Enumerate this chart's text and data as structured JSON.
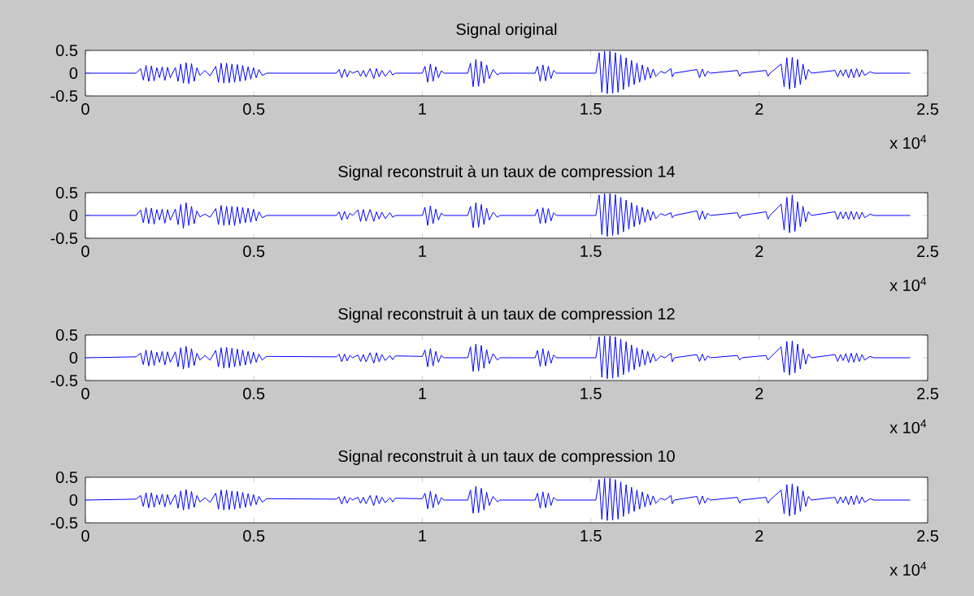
{
  "chart_data": [
    {
      "type": "line",
      "title": "Signal original",
      "color": "#0000ff",
      "xlim": [
        0,
        2.5
      ],
      "ylim": [
        -0.5,
        0.5
      ],
      "xticks": [
        0,
        0.5,
        1,
        1.5,
        2,
        2.5
      ],
      "yticks": [
        -0.5,
        0,
        0.5
      ],
      "annotations": [
        "x 10$^{4}$"
      ],
      "x": [
        0,
        0.15,
        0.164,
        0.172,
        0.18,
        0.188,
        0.196,
        0.204,
        0.212,
        0.22,
        0.228,
        0.236,
        0.244,
        0.252,
        0.267,
        0.275,
        0.283,
        0.291,
        0.299,
        0.307,
        0.315,
        0.323,
        0.331,
        0.34,
        0.355,
        0.37,
        0.387,
        0.395,
        0.403,
        0.411,
        0.419,
        0.427,
        0.435,
        0.443,
        0.451,
        0.459,
        0.467,
        0.475,
        0.483,
        0.491,
        0.499,
        0.507,
        0.515,
        0.525,
        0.538,
        0.745,
        0.753,
        0.761,
        0.769,
        0.777,
        0.785,
        0.793,
        0.809,
        0.817,
        0.825,
        0.833,
        0.845,
        0.856,
        0.864,
        0.872,
        0.88,
        0.89,
        0.904,
        0.912,
        0.92,
        1.0,
        1.008,
        1.016,
        1.024,
        1.032,
        1.04,
        1.048,
        1.056,
        1.065,
        1.135,
        1.143,
        1.151,
        1.159,
        1.167,
        1.175,
        1.183,
        1.191,
        1.199,
        1.21,
        1.223,
        1.23,
        1.335,
        1.342,
        1.35,
        1.358,
        1.366,
        1.374,
        1.382,
        1.39,
        1.398,
        1.515,
        1.525,
        1.533,
        1.541,
        1.549,
        1.557,
        1.565,
        1.573,
        1.581,
        1.589,
        1.597,
        1.605,
        1.613,
        1.621,
        1.629,
        1.637,
        1.645,
        1.653,
        1.661,
        1.669,
        1.677,
        1.685,
        1.693,
        1.708,
        1.72,
        1.738,
        1.742,
        1.748,
        1.815,
        1.823,
        1.831,
        1.839,
        1.847,
        1.855,
        1.935,
        1.942,
        1.948,
        2.02,
        2.026,
        2.032,
        2.065,
        2.074,
        2.082,
        2.09,
        2.098,
        2.106,
        2.114,
        2.122,
        2.13,
        2.138,
        2.146,
        2.155,
        2.225,
        2.233,
        2.241,
        2.249,
        2.257,
        2.265,
        2.273,
        2.281,
        2.289,
        2.297,
        2.305,
        2.313,
        2.329,
        2.34,
        2.448
      ],
      "values": [
        0,
        0,
        0.1,
        -0.15,
        0.17,
        -0.18,
        0.16,
        -0.17,
        0.12,
        -0.1,
        0.14,
        -0.16,
        0.13,
        -0.1,
        0.12,
        -0.18,
        0.2,
        -0.22,
        0.23,
        -0.23,
        0.21,
        -0.18,
        0.12,
        -0.05,
        0.06,
        -0.06,
        0.15,
        -0.2,
        0.22,
        -0.22,
        0.22,
        -0.21,
        0.2,
        -0.2,
        0.19,
        -0.18,
        0.17,
        -0.16,
        0.14,
        -0.13,
        0.12,
        -0.1,
        0.08,
        -0.05,
        0,
        0,
        0.08,
        -0.1,
        0.09,
        -0.08,
        0.05,
        0,
        0.05,
        -0.07,
        0.06,
        -0.08,
        0.1,
        -0.12,
        0.1,
        -0.08,
        0.06,
        -0.07,
        0.06,
        -0.04,
        0,
        0,
        0.15,
        -0.2,
        0.2,
        -0.18,
        0.14,
        -0.1,
        0.05,
        0,
        0,
        0.22,
        -0.3,
        0.3,
        -0.29,
        0.26,
        -0.22,
        0.18,
        -0.12,
        0.08,
        -0.04,
        0,
        0,
        0.15,
        -0.18,
        0.18,
        -0.17,
        0.15,
        -0.12,
        0.06,
        0,
        0,
        0.45,
        -0.42,
        0.48,
        -0.45,
        0.48,
        -0.44,
        0.45,
        -0.42,
        0.4,
        -0.36,
        0.34,
        -0.3,
        0.28,
        -0.25,
        0.22,
        -0.2,
        0.18,
        -0.15,
        0.13,
        -0.11,
        0.09,
        -0.07,
        0.04,
        0,
        0.1,
        -0.08,
        0,
        0.08,
        -0.1,
        0.09,
        -0.07,
        0.04,
        0,
        0.06,
        -0.07,
        0,
        0.06,
        -0.07,
        0,
        0.2,
        -0.3,
        0.34,
        -0.35,
        0.35,
        -0.32,
        0.3,
        -0.25,
        0.2,
        -0.14,
        0.08,
        0,
        0.06,
        -0.08,
        0.07,
        -0.06,
        0.08,
        -0.1,
        0.09,
        -0.1,
        0.1,
        -0.08,
        0.07,
        -0.05,
        0.03,
        0,
        0
      ]
    },
    {
      "type": "line",
      "title": "Signal reconstruit à un taux de compression 14",
      "color": "#0000ff",
      "xlim": [
        0,
        2.5
      ],
      "ylim": [
        -0.5,
        0.5
      ],
      "xticks": [
        0,
        0.5,
        1,
        1.5,
        2,
        2.5
      ],
      "yticks": [
        -0.5,
        0,
        0.5
      ],
      "annotations": [
        "x 10$^{4}$"
      ],
      "x": [
        0,
        0.15,
        0.164,
        0.172,
        0.18,
        0.188,
        0.196,
        0.204,
        0.212,
        0.22,
        0.228,
        0.236,
        0.244,
        0.252,
        0.267,
        0.275,
        0.283,
        0.291,
        0.299,
        0.307,
        0.315,
        0.323,
        0.331,
        0.34,
        0.355,
        0.37,
        0.387,
        0.395,
        0.403,
        0.411,
        0.419,
        0.427,
        0.435,
        0.443,
        0.451,
        0.459,
        0.467,
        0.475,
        0.483,
        0.491,
        0.499,
        0.507,
        0.515,
        0.525,
        0.538,
        0.745,
        0.753,
        0.761,
        0.769,
        0.777,
        0.785,
        0.793,
        0.809,
        0.817,
        0.825,
        0.833,
        0.845,
        0.856,
        0.864,
        0.872,
        0.88,
        0.89,
        0.904,
        0.912,
        0.92,
        1.0,
        1.008,
        1.016,
        1.024,
        1.032,
        1.04,
        1.048,
        1.056,
        1.065,
        1.135,
        1.143,
        1.151,
        1.159,
        1.167,
        1.175,
        1.183,
        1.191,
        1.199,
        1.21,
        1.223,
        1.23,
        1.335,
        1.342,
        1.35,
        1.358,
        1.366,
        1.374,
        1.382,
        1.39,
        1.398,
        1.515,
        1.525,
        1.533,
        1.541,
        1.549,
        1.557,
        1.565,
        1.573,
        1.581,
        1.589,
        1.597,
        1.605,
        1.613,
        1.621,
        1.629,
        1.637,
        1.645,
        1.653,
        1.661,
        1.669,
        1.677,
        1.685,
        1.693,
        1.708,
        1.72,
        1.738,
        1.742,
        1.748,
        1.815,
        1.823,
        1.831,
        1.839,
        1.847,
        1.855,
        1.935,
        1.942,
        1.948,
        2.02,
        2.026,
        2.032,
        2.065,
        2.074,
        2.082,
        2.09,
        2.098,
        2.106,
        2.114,
        2.122,
        2.13,
        2.138,
        2.146,
        2.155,
        2.225,
        2.233,
        2.241,
        2.249,
        2.257,
        2.265,
        2.273,
        2.281,
        2.289,
        2.297,
        2.305,
        2.313,
        2.329,
        2.34,
        2.448
      ],
      "values": [
        0,
        0,
        0.12,
        -0.16,
        0.17,
        -0.18,
        0.16,
        -0.19,
        0.13,
        -0.1,
        0.14,
        -0.17,
        0.13,
        -0.1,
        0.14,
        -0.2,
        0.24,
        -0.28,
        0.28,
        -0.22,
        0.2,
        -0.18,
        0.1,
        -0.03,
        0.03,
        -0.04,
        0.15,
        -0.2,
        0.22,
        -0.22,
        0.2,
        -0.21,
        0.2,
        -0.22,
        0.19,
        -0.18,
        0.18,
        -0.16,
        0.16,
        -0.15,
        0.14,
        -0.12,
        0.08,
        -0.05,
        0,
        0,
        0.08,
        -0.1,
        0.09,
        -0.08,
        0.05,
        0,
        0.12,
        -0.13,
        0.13,
        -0.12,
        0.13,
        -0.13,
        0.08,
        -0.08,
        0.07,
        -0.07,
        0.06,
        -0.04,
        0,
        0,
        0.18,
        -0.22,
        0.21,
        -0.18,
        0.14,
        -0.1,
        0.05,
        0,
        0,
        0.2,
        -0.27,
        0.28,
        -0.26,
        0.24,
        -0.2,
        0.16,
        -0.1,
        0.07,
        -0.04,
        0,
        0,
        0.14,
        -0.18,
        0.17,
        -0.17,
        0.15,
        -0.12,
        0.06,
        0,
        0,
        0.45,
        -0.42,
        0.48,
        -0.46,
        0.48,
        -0.44,
        0.46,
        -0.42,
        0.4,
        -0.36,
        0.34,
        -0.3,
        0.28,
        -0.25,
        0.22,
        -0.2,
        0.18,
        -0.15,
        0.13,
        -0.11,
        0.09,
        -0.07,
        0.04,
        0,
        0.06,
        -0.05,
        0,
        0.1,
        -0.1,
        0.1,
        -0.08,
        0.05,
        0,
        0.06,
        -0.06,
        0,
        0.08,
        -0.08,
        0,
        0.25,
        -0.32,
        0.4,
        -0.38,
        0.45,
        -0.35,
        0.3,
        -0.25,
        0.2,
        -0.14,
        0.08,
        0,
        0.08,
        -0.09,
        0.08,
        -0.07,
        0.08,
        -0.09,
        0.09,
        -0.09,
        0.08,
        -0.08,
        0.07,
        -0.05,
        0.03,
        0,
        0
      ]
    },
    {
      "type": "line",
      "title": "Signal reconstruit à un taux de compression 12",
      "color": "#0000ff",
      "xlim": [
        0,
        2.5
      ],
      "ylim": [
        -0.5,
        0.5
      ],
      "xticks": [
        0,
        0.5,
        1,
        1.5,
        2,
        2.5
      ],
      "yticks": [
        -0.5,
        0,
        0.5
      ],
      "annotations": [
        "x 10$^{4}$"
      ],
      "x": [
        0,
        0.15,
        0.164,
        0.172,
        0.18,
        0.188,
        0.196,
        0.204,
        0.212,
        0.22,
        0.228,
        0.236,
        0.244,
        0.252,
        0.267,
        0.275,
        0.283,
        0.291,
        0.299,
        0.307,
        0.315,
        0.323,
        0.331,
        0.34,
        0.355,
        0.37,
        0.387,
        0.395,
        0.403,
        0.411,
        0.419,
        0.427,
        0.435,
        0.443,
        0.451,
        0.459,
        0.467,
        0.475,
        0.483,
        0.491,
        0.499,
        0.507,
        0.515,
        0.525,
        0.538,
        0.745,
        0.753,
        0.761,
        0.769,
        0.777,
        0.785,
        0.793,
        0.809,
        0.817,
        0.825,
        0.833,
        0.845,
        0.856,
        0.864,
        0.872,
        0.88,
        0.89,
        0.904,
        0.912,
        0.92,
        1.0,
        1.008,
        1.016,
        1.024,
        1.032,
        1.04,
        1.048,
        1.056,
        1.065,
        1.135,
        1.143,
        1.151,
        1.159,
        1.167,
        1.175,
        1.183,
        1.191,
        1.199,
        1.21,
        1.223,
        1.23,
        1.335,
        1.342,
        1.35,
        1.358,
        1.366,
        1.374,
        1.382,
        1.39,
        1.398,
        1.515,
        1.525,
        1.533,
        1.541,
        1.549,
        1.557,
        1.565,
        1.573,
        1.581,
        1.589,
        1.597,
        1.605,
        1.613,
        1.621,
        1.629,
        1.637,
        1.645,
        1.653,
        1.661,
        1.669,
        1.677,
        1.685,
        1.693,
        1.708,
        1.72,
        1.738,
        1.742,
        1.748,
        1.815,
        1.823,
        1.831,
        1.839,
        1.847,
        1.855,
        1.935,
        1.942,
        1.948,
        2.02,
        2.026,
        2.032,
        2.065,
        2.074,
        2.082,
        2.09,
        2.098,
        2.106,
        2.114,
        2.122,
        2.13,
        2.138,
        2.146,
        2.155,
        2.225,
        2.233,
        2.241,
        2.249,
        2.257,
        2.265,
        2.273,
        2.281,
        2.289,
        2.297,
        2.305,
        2.313,
        2.329,
        2.34,
        2.448
      ],
      "values": [
        0,
        0.02,
        0.1,
        -0.15,
        0.17,
        -0.18,
        0.16,
        -0.17,
        0.12,
        -0.1,
        0.14,
        -0.16,
        0.13,
        -0.1,
        0.13,
        -0.2,
        0.22,
        -0.25,
        0.25,
        -0.22,
        0.2,
        -0.17,
        0.1,
        -0.05,
        0.05,
        -0.05,
        0.16,
        -0.2,
        0.22,
        -0.23,
        0.23,
        -0.22,
        0.21,
        -0.2,
        0.19,
        -0.18,
        0.17,
        -0.16,
        0.14,
        -0.13,
        0.12,
        -0.1,
        0.08,
        -0.05,
        0.03,
        0.02,
        0.08,
        -0.09,
        0.08,
        -0.07,
        0.05,
        0,
        0.06,
        -0.08,
        0.07,
        -0.09,
        0.11,
        -0.12,
        0.11,
        -0.09,
        0.07,
        -0.06,
        0.05,
        -0.04,
        0.04,
        0.03,
        0.17,
        -0.2,
        0.2,
        -0.18,
        0.14,
        -0.1,
        0.05,
        0,
        0,
        0.24,
        -0.3,
        0.3,
        -0.29,
        0.27,
        -0.23,
        0.18,
        -0.13,
        0.09,
        -0.05,
        0,
        0,
        0.16,
        -0.19,
        0.2,
        -0.18,
        0.15,
        -0.12,
        0.06,
        0,
        0,
        0.46,
        -0.43,
        0.48,
        -0.46,
        0.48,
        -0.45,
        0.46,
        -0.42,
        0.41,
        -0.37,
        0.35,
        -0.31,
        0.28,
        -0.26,
        0.22,
        -0.2,
        0.18,
        -0.16,
        0.14,
        -0.11,
        0.09,
        -0.07,
        0.04,
        0,
        0.1,
        -0.09,
        0,
        0.07,
        -0.08,
        0.08,
        -0.06,
        0.04,
        0,
        0.05,
        -0.05,
        0,
        0.05,
        -0.05,
        0,
        0.24,
        -0.32,
        0.36,
        -0.38,
        0.37,
        -0.33,
        0.3,
        -0.25,
        0.2,
        -0.14,
        0.08,
        0,
        0.07,
        -0.08,
        0.07,
        -0.06,
        0.09,
        -0.1,
        0.1,
        -0.1,
        0.1,
        -0.08,
        0.07,
        -0.05,
        0.03,
        0,
        0
      ]
    },
    {
      "type": "line",
      "title": "Signal reconstruit à un taux de compression 10",
      "color": "#0000ff",
      "xlim": [
        0,
        2.5
      ],
      "ylim": [
        -0.5,
        0.5
      ],
      "xticks": [
        0,
        0.5,
        1,
        1.5,
        2,
        2.5
      ],
      "yticks": [
        -0.5,
        0,
        0.5
      ],
      "annotations": [
        "x 10$^{4}$"
      ],
      "x": [
        0,
        0.15,
        0.164,
        0.172,
        0.18,
        0.188,
        0.196,
        0.204,
        0.212,
        0.22,
        0.228,
        0.236,
        0.244,
        0.252,
        0.267,
        0.275,
        0.283,
        0.291,
        0.299,
        0.307,
        0.315,
        0.323,
        0.331,
        0.34,
        0.355,
        0.37,
        0.387,
        0.395,
        0.403,
        0.411,
        0.419,
        0.427,
        0.435,
        0.443,
        0.451,
        0.459,
        0.467,
        0.475,
        0.483,
        0.491,
        0.499,
        0.507,
        0.515,
        0.525,
        0.538,
        0.745,
        0.753,
        0.761,
        0.769,
        0.777,
        0.785,
        0.793,
        0.809,
        0.817,
        0.825,
        0.833,
        0.845,
        0.856,
        0.864,
        0.872,
        0.88,
        0.89,
        0.904,
        0.912,
        0.92,
        1.0,
        1.008,
        1.016,
        1.024,
        1.032,
        1.04,
        1.048,
        1.056,
        1.065,
        1.135,
        1.143,
        1.151,
        1.159,
        1.167,
        1.175,
        1.183,
        1.191,
        1.199,
        1.21,
        1.223,
        1.23,
        1.335,
        1.342,
        1.35,
        1.358,
        1.366,
        1.374,
        1.382,
        1.39,
        1.398,
        1.515,
        1.525,
        1.533,
        1.541,
        1.549,
        1.557,
        1.565,
        1.573,
        1.581,
        1.589,
        1.597,
        1.605,
        1.613,
        1.621,
        1.629,
        1.637,
        1.645,
        1.653,
        1.661,
        1.669,
        1.677,
        1.685,
        1.693,
        1.708,
        1.72,
        1.738,
        1.742,
        1.748,
        1.815,
        1.823,
        1.831,
        1.839,
        1.847,
        1.855,
        1.935,
        1.942,
        1.948,
        2.02,
        2.026,
        2.032,
        2.065,
        2.074,
        2.082,
        2.09,
        2.098,
        2.106,
        2.114,
        2.122,
        2.13,
        2.138,
        2.146,
        2.155,
        2.225,
        2.233,
        2.241,
        2.249,
        2.257,
        2.265,
        2.273,
        2.281,
        2.289,
        2.297,
        2.305,
        2.313,
        2.329,
        2.34,
        2.448
      ],
      "values": [
        0,
        0.02,
        0.1,
        -0.14,
        0.16,
        -0.17,
        0.16,
        -0.16,
        0.11,
        -0.1,
        0.13,
        -0.15,
        0.12,
        -0.1,
        0.12,
        -0.18,
        0.2,
        -0.22,
        0.23,
        -0.2,
        0.19,
        -0.16,
        0.1,
        -0.04,
        0.05,
        -0.05,
        0.15,
        -0.2,
        0.22,
        -0.22,
        0.22,
        -0.21,
        0.2,
        -0.2,
        0.19,
        -0.18,
        0.17,
        -0.16,
        0.14,
        -0.13,
        0.12,
        -0.1,
        0.08,
        -0.05,
        0.03,
        0.02,
        0.07,
        -0.09,
        0.08,
        -0.07,
        0.05,
        0,
        0.06,
        -0.07,
        0.06,
        -0.08,
        0.1,
        -0.12,
        0.1,
        -0.08,
        0.06,
        -0.06,
        0.05,
        -0.04,
        0.04,
        0.03,
        0.15,
        -0.19,
        0.19,
        -0.17,
        0.13,
        -0.1,
        0.05,
        0,
        0,
        0.22,
        -0.29,
        0.3,
        -0.28,
        0.26,
        -0.22,
        0.17,
        -0.12,
        0.08,
        -0.04,
        0,
        0,
        0.15,
        -0.18,
        0.18,
        -0.17,
        0.15,
        -0.12,
        0.06,
        0,
        0,
        0.45,
        -0.42,
        0.48,
        -0.45,
        0.48,
        -0.44,
        0.45,
        -0.42,
        0.4,
        -0.36,
        0.34,
        -0.3,
        0.28,
        -0.25,
        0.22,
        -0.2,
        0.18,
        -0.15,
        0.13,
        -0.11,
        0.09,
        -0.07,
        0.04,
        0,
        0.1,
        -0.08,
        0,
        0.08,
        -0.1,
        0.09,
        -0.07,
        0.04,
        0,
        0.06,
        -0.07,
        0,
        0.06,
        -0.07,
        0,
        0.22,
        -0.3,
        0.34,
        -0.35,
        0.35,
        -0.32,
        0.3,
        -0.25,
        0.2,
        -0.14,
        0.08,
        0,
        0.06,
        -0.08,
        0.07,
        -0.06,
        0.08,
        -0.1,
        0.09,
        -0.1,
        0.1,
        -0.08,
        0.07,
        -0.05,
        0.03,
        0,
        0
      ]
    }
  ]
}
